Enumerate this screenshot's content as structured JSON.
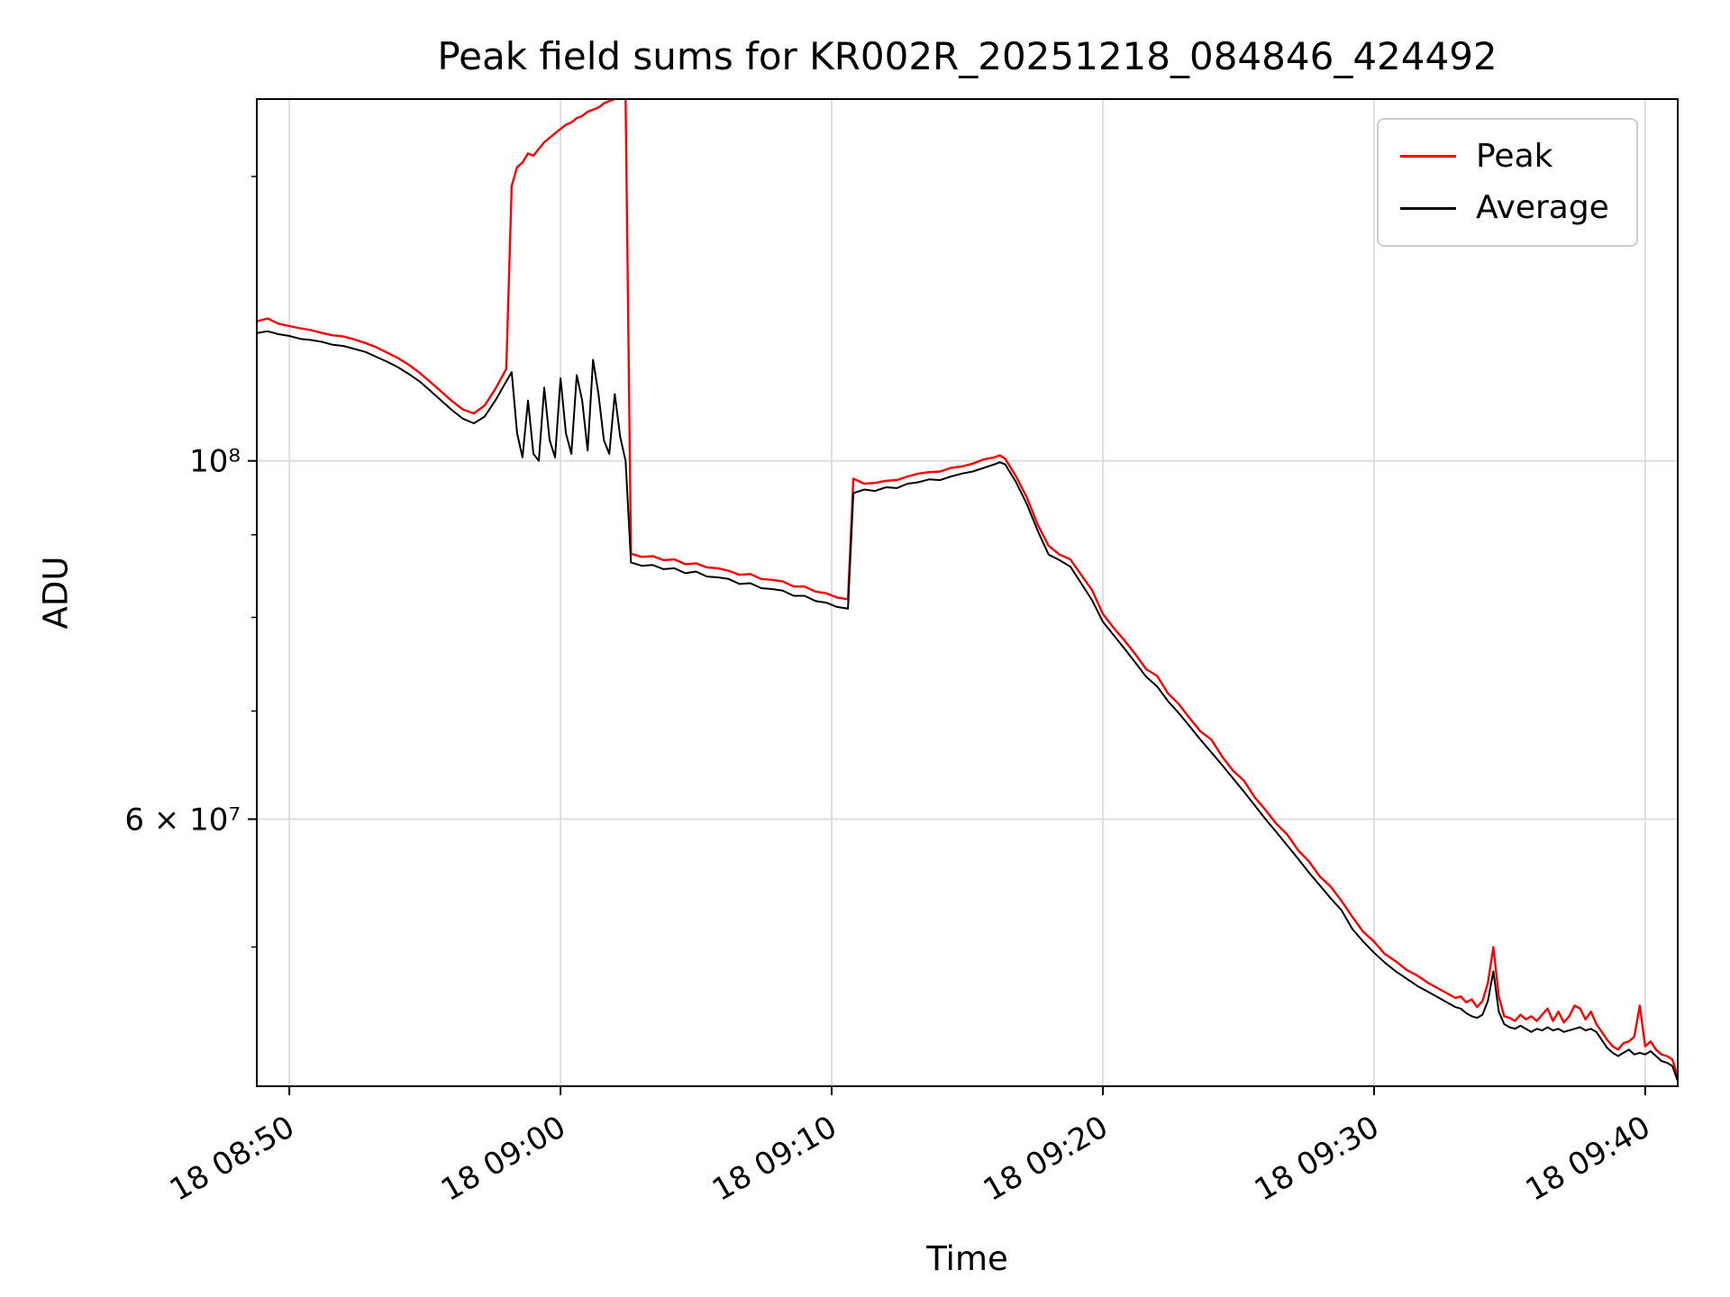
{
  "colors": {
    "background": "#ffffff",
    "spine": "#000000",
    "grid": "#dcdcdc",
    "tick": "#000000",
    "legend_border": "#cccccc"
  },
  "chart_data": {
    "type": "line",
    "title": "Peak field sums for KR002R_20251218_084846_424492",
    "xlabel": "Time",
    "ylabel": "ADU",
    "yscale": "log",
    "grid": true,
    "legend_position": "upper right",
    "value_unit_multiplier": 1000000,
    "xlim_minutes": [
      48.8,
      101.2
    ],
    "ylim_e6": [
      41.0,
      167.5
    ],
    "x_ticks": [
      {
        "value": 50,
        "label": "18 08:50"
      },
      {
        "value": 60,
        "label": "18 09:00"
      },
      {
        "value": 70,
        "label": "18 09:10"
      },
      {
        "value": 80,
        "label": "18 09:20"
      },
      {
        "value": 90,
        "label": "18 09:30"
      },
      {
        "value": 100,
        "label": "18 09:40"
      }
    ],
    "y_ticks": [
      {
        "value_e6": 100,
        "label": "10⁸"
      },
      {
        "value_e6": 60,
        "label": "6 × 10⁷"
      }
    ],
    "y_minor_ticks_e6": [
      50,
      70,
      80,
      90,
      150
    ],
    "x_minutes": [
      48.8,
      49.2,
      49.6,
      50.0,
      50.4,
      50.8,
      51.2,
      51.6,
      52.0,
      52.4,
      52.8,
      53.2,
      53.6,
      54.0,
      54.4,
      54.8,
      55.2,
      55.6,
      56.0,
      56.4,
      56.8,
      57.2,
      57.6,
      58.0,
      58.2,
      58.4,
      58.6,
      58.8,
      59.0,
      59.2,
      59.4,
      59.6,
      59.8,
      60.0,
      60.2,
      60.4,
      60.6,
      60.8,
      61.0,
      61.2,
      61.4,
      61.6,
      61.8,
      62.0,
      62.2,
      62.4,
      62.6,
      63.0,
      63.4,
      63.8,
      64.2,
      64.6,
      65.0,
      65.4,
      65.8,
      66.2,
      66.6,
      67.0,
      67.4,
      67.8,
      68.2,
      68.6,
      69.0,
      69.4,
      69.8,
      70.2,
      70.6,
      70.8,
      71.2,
      71.6,
      72.0,
      72.4,
      72.8,
      73.2,
      73.6,
      74.0,
      74.4,
      74.8,
      75.2,
      75.6,
      76.0,
      76.2,
      76.4,
      76.8,
      77.2,
      77.6,
      78.0,
      78.4,
      78.8,
      79.2,
      79.6,
      80.0,
      80.4,
      80.8,
      81.2,
      81.6,
      82.0,
      82.4,
      82.8,
      83.2,
      83.6,
      84.0,
      84.4,
      84.8,
      85.2,
      85.6,
      86.0,
      86.4,
      86.8,
      87.2,
      87.6,
      88.0,
      88.4,
      88.8,
      89.2,
      89.6,
      90.0,
      90.4,
      90.8,
      91.2,
      91.6,
      92.0,
      92.4,
      92.8,
      93.0,
      93.2,
      93.4,
      93.6,
      93.8,
      94.0,
      94.2,
      94.4,
      94.6,
      94.8,
      95.0,
      95.2,
      95.4,
      95.6,
      95.8,
      96.0,
      96.2,
      96.4,
      96.6,
      96.8,
      97.0,
      97.2,
      97.4,
      97.6,
      97.8,
      98.0,
      98.2,
      98.4,
      98.6,
      98.8,
      99.0,
      99.2,
      99.4,
      99.6,
      99.8,
      100.0,
      100.2,
      100.4,
      100.6,
      100.8,
      101.0,
      101.2
    ],
    "series": [
      {
        "name": "Peak",
        "color": "#ff0000",
        "values_e6": [
          122.0,
          122.5,
          121.6,
          121.2,
          120.8,
          120.5,
          120.0,
          119.6,
          119.4,
          118.9,
          118.3,
          117.6,
          116.7,
          115.8,
          114.7,
          113.4,
          111.9,
          110.4,
          108.9,
          107.6,
          107.0,
          108.2,
          110.8,
          114.0,
          148.0,
          152.0,
          153.0,
          155.0,
          154.5,
          156.0,
          157.5,
          158.5,
          159.5,
          160.5,
          161.5,
          162.0,
          163.0,
          163.5,
          164.5,
          165.0,
          165.5,
          166.5,
          167.0,
          167.5,
          168.0,
          167.8,
          87.6,
          87.2,
          87.3,
          86.8,
          86.9,
          86.3,
          86.4,
          85.9,
          85.8,
          85.5,
          85.0,
          85.1,
          84.5,
          84.4,
          84.2,
          83.6,
          83.6,
          83.0,
          82.8,
          82.3,
          82.1,
          97.5,
          96.8,
          96.9,
          97.2,
          97.3,
          97.8,
          98.2,
          98.4,
          98.5,
          99.0,
          99.2,
          99.6,
          100.2,
          100.5,
          100.8,
          100.3,
          97.8,
          94.9,
          91.3,
          88.6,
          87.5,
          86.9,
          85.0,
          83.2,
          80.4,
          78.8,
          77.4,
          75.9,
          74.3,
          73.6,
          71.8,
          70.7,
          69.3,
          68.0,
          67.2,
          65.6,
          64.3,
          63.4,
          61.9,
          60.8,
          59.6,
          58.7,
          57.4,
          56.5,
          55.3,
          54.5,
          53.4,
          52.2,
          51.1,
          50.4,
          49.5,
          49.0,
          48.4,
          48.0,
          47.5,
          47.1,
          46.7,
          46.5,
          46.6,
          46.2,
          46.4,
          45.9,
          46.3,
          47.5,
          50.0,
          46.6,
          45.3,
          45.2,
          45.0,
          45.4,
          45.1,
          45.3,
          45.0,
          45.4,
          45.8,
          45.0,
          45.6,
          44.9,
          45.3,
          46.0,
          45.8,
          45.1,
          45.6,
          44.8,
          44.3,
          43.8,
          43.4,
          43.2,
          43.6,
          43.7,
          44.0,
          46.0,
          43.4,
          43.7,
          43.2,
          42.9,
          42.8,
          42.6,
          41.6
        ]
      },
      {
        "name": "Average",
        "color": "#000000",
        "values_e6": [
          120.0,
          120.3,
          119.8,
          119.5,
          119.0,
          118.8,
          118.5,
          118.0,
          117.8,
          117.3,
          116.8,
          116.0,
          115.2,
          114.3,
          113.2,
          112.0,
          110.5,
          109.0,
          107.5,
          106.2,
          105.5,
          106.5,
          109.0,
          112.0,
          113.5,
          104.0,
          100.5,
          109.0,
          101.0,
          100.0,
          111.0,
          103.0,
          100.5,
          112.5,
          104.0,
          101.0,
          113.0,
          109.0,
          101.5,
          115.5,
          110.0,
          103.0,
          101.0,
          110.0,
          103.5,
          100.0,
          86.5,
          86.1,
          86.2,
          85.7,
          85.8,
          85.2,
          85.4,
          84.8,
          84.7,
          84.5,
          83.9,
          84.0,
          83.4,
          83.3,
          83.1,
          82.5,
          82.5,
          81.9,
          81.7,
          81.2,
          81.0,
          95.5,
          96.0,
          95.8,
          96.3,
          96.2,
          96.8,
          97.0,
          97.4,
          97.3,
          97.8,
          98.2,
          98.5,
          99.0,
          99.5,
          99.8,
          99.5,
          97.0,
          94.0,
          90.5,
          87.5,
          86.8,
          86.0,
          84.0,
          82.0,
          79.5,
          78.0,
          76.5,
          75.0,
          73.5,
          72.5,
          71.0,
          69.8,
          68.5,
          67.2,
          66.0,
          64.8,
          63.6,
          62.4,
          61.2,
          60.0,
          58.9,
          57.8,
          56.7,
          55.6,
          54.6,
          53.6,
          52.7,
          51.3,
          50.4,
          49.6,
          48.9,
          48.3,
          47.8,
          47.3,
          46.9,
          46.5,
          46.1,
          45.9,
          45.8,
          45.5,
          45.3,
          45.2,
          45.4,
          46.3,
          48.3,
          45.6,
          44.8,
          44.6,
          44.5,
          44.7,
          44.5,
          44.3,
          44.5,
          44.4,
          44.6,
          44.4,
          44.5,
          44.3,
          44.4,
          44.5,
          44.6,
          44.4,
          44.5,
          44.3,
          43.8,
          43.3,
          43.0,
          42.8,
          43.0,
          43.2,
          42.9,
          43.0,
          42.9,
          43.1,
          42.8,
          42.5,
          42.4,
          42.2,
          41.3
        ]
      }
    ]
  }
}
